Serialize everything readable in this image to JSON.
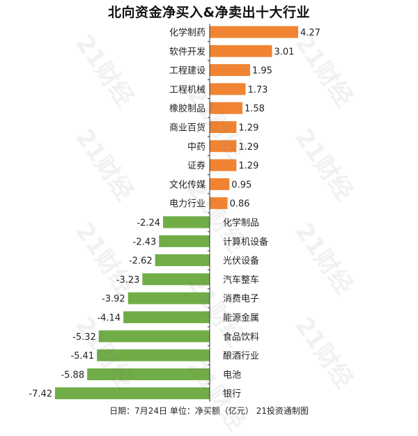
{
  "title": "北向资金净买入&净卖出十大行业",
  "footer": "日期：7月24日 单位：净买额（亿元） 21投资通制图",
  "watermark_text": "21财经",
  "colors": {
    "positive": "#F08432",
    "negative": "#70AD47",
    "axis": "#333333",
    "text": "#222222"
  },
  "chart_data": {
    "type": "bar",
    "orientation": "horizontal",
    "title": "北向资金净买入&净卖出十大行业",
    "xlabel": "",
    "ylabel": "",
    "unit": "净买额（亿元）",
    "grid": false,
    "legend": "none",
    "xlim": [
      -7.42,
      4.27
    ],
    "categories": [
      "化学制药",
      "软件开发",
      "工程建设",
      "工程机械",
      "橡胶制品",
      "商业百货",
      "中药",
      "证券",
      "文化传媒",
      "电力行业",
      "化学制品",
      "计算机设备",
      "光伏设备",
      "汽车整车",
      "消费电子",
      "能源金属",
      "食品饮料",
      "酿酒行业",
      "电池",
      "银行"
    ],
    "values": [
      4.27,
      3.01,
      1.95,
      1.73,
      1.58,
      1.29,
      1.29,
      1.29,
      0.95,
      0.86,
      -2.24,
      -2.43,
      -2.62,
      -3.23,
      -3.92,
      -4.14,
      -5.32,
      -5.41,
      -5.88,
      -7.42
    ],
    "value_labels": [
      "4.27",
      "3.01",
      "1.95",
      "1.73",
      "1.58",
      "1.29",
      "1.29",
      "1.29",
      "0.95",
      "0.86",
      "-2.24",
      "-2.43",
      "-2.62",
      "-3.23",
      "-3.92",
      "-4.14",
      "-5.32",
      "-5.41",
      "-5.88",
      "-7.42"
    ]
  }
}
